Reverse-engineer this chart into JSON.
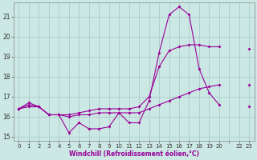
{
  "xlabel": "Windchill (Refroidissement éolien,°C)",
  "bg_color": "#cce8e4",
  "line_color": "#990099",
  "grid_color": "#aacccc",
  "ylim": [
    14.8,
    21.7
  ],
  "yticks": [
    15,
    16,
    17,
    18,
    19,
    20,
    21
  ],
  "xtick_labels": [
    "0",
    "1",
    "2",
    "3",
    "4",
    "5",
    "6",
    "7",
    "8",
    "9",
    "10",
    "11",
    "12",
    "13",
    "14",
    "15",
    "16",
    "17",
    "18",
    "19",
    "20",
    "",
    "22",
    "23"
  ],
  "line1_y": [
    16.4,
    16.7,
    16.5,
    16.1,
    16.1,
    15.2,
    15.7,
    15.4,
    15.4,
    15.5,
    16.2,
    15.7,
    15.7,
    16.8,
    19.2,
    21.1,
    21.5,
    21.1,
    18.4,
    17.2,
    16.6,
    null,
    null,
    16.5
  ],
  "line2_y": [
    16.4,
    16.6,
    16.5,
    16.1,
    16.1,
    16.1,
    16.2,
    16.3,
    16.4,
    16.4,
    16.4,
    16.4,
    16.5,
    17.0,
    18.5,
    19.3,
    19.5,
    19.6,
    19.6,
    19.5,
    19.5,
    null,
    null,
    19.4
  ],
  "line3_y": [
    16.4,
    16.5,
    16.5,
    16.1,
    16.1,
    16.0,
    16.1,
    16.1,
    16.2,
    16.2,
    16.2,
    16.2,
    16.2,
    16.4,
    16.6,
    16.8,
    17.0,
    17.2,
    17.4,
    17.5,
    17.6,
    null,
    null,
    17.6
  ]
}
